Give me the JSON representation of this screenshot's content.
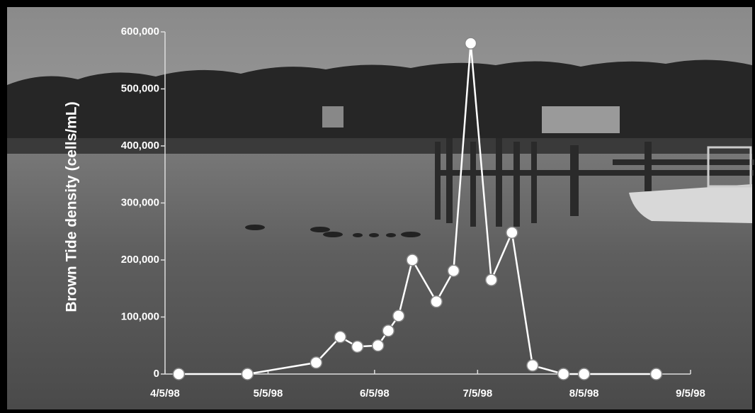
{
  "chart_data": {
    "type": "line",
    "y_label": "Brown Tide density (cells/mL)",
    "x": [
      "1998-04-09",
      "1998-04-29",
      "1998-05-19",
      "1998-05-26",
      "1998-05-31",
      "1998-06-06",
      "1998-06-09",
      "1998-06-12",
      "1998-06-16",
      "1998-06-23",
      "1998-06-28",
      "1998-07-03",
      "1998-07-09",
      "1998-07-15",
      "1998-07-21",
      "1998-07-30",
      "1998-08-05",
      "1998-08-26"
    ],
    "series": [
      {
        "color": "#ffffff",
        "values": [
          0,
          0,
          20000,
          65000,
          48000,
          50000,
          76000,
          102000,
          200000,
          127000,
          181000,
          580000,
          165000,
          248000,
          15000,
          0,
          0,
          0
        ]
      }
    ],
    "xlim": [
      "1998-04-05",
      "1998-09-05"
    ],
    "xticks": [
      {
        "value": "1998-04-05",
        "label": "4/5/98"
      },
      {
        "value": "1998-05-05",
        "label": "5/5/98"
      },
      {
        "value": "1998-06-05",
        "label": "6/5/98"
      },
      {
        "value": "1998-07-05",
        "label": "7/5/98"
      },
      {
        "value": "1998-08-05",
        "label": "8/5/98"
      },
      {
        "value": "1998-09-05",
        "label": "9/5/98"
      }
    ],
    "ylim": [
      0,
      600000
    ],
    "yticks": [
      0,
      {
        "value": 100000,
        "label": "100,000"
      },
      {
        "value": 200000,
        "label": "200,000"
      },
      {
        "value": 300000,
        "label": "300,000"
      },
      {
        "value": 400000,
        "label": "400,000"
      },
      {
        "value": 500000,
        "label": "500,000"
      },
      {
        "value": 600000,
        "label": "600,000"
      }
    ]
  }
}
